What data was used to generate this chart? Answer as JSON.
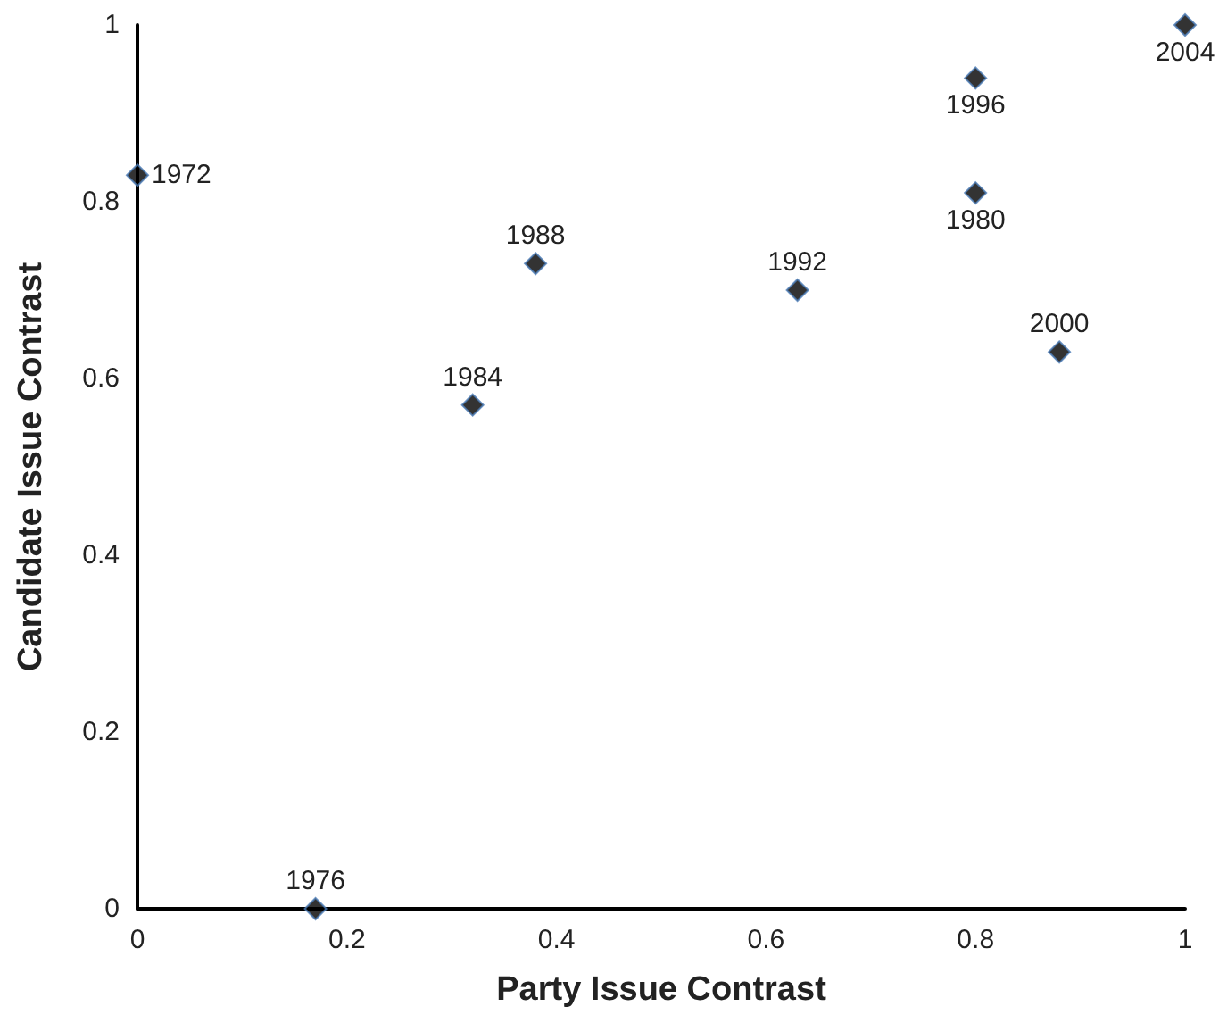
{
  "chart_data": {
    "type": "scatter",
    "xlabel": "Party Issue Contrast",
    "ylabel": "Candidate Issue Contrast",
    "x": [
      0,
      0.17,
      0.8,
      0.32,
      0.38,
      0.63,
      0.8,
      0.88,
      1
    ],
    "values": [
      0.83,
      0,
      0.81,
      0.57,
      0.73,
      0.7,
      0.94,
      0.63,
      1
    ],
    "color": "#000000",
    "marker": "diamond",
    "grid": false,
    "xlim": [
      0,
      1
    ],
    "xticks": [
      0,
      0.2,
      0.4,
      0.6,
      0.8,
      1
    ],
    "ylim": [
      0,
      1
    ],
    "yticks": [
      0,
      0.2,
      0.4,
      0.6,
      0.8,
      1
    ],
    "annotations": [
      {
        "text": "1972",
        "x": 0,
        "y": 0.83
      },
      {
        "text": "1976",
        "x": 0.17,
        "y": 0
      },
      {
        "text": "1980",
        "x": 0.8,
        "y": 0.81
      },
      {
        "text": "1984",
        "x": 0.32,
        "y": 0.57
      },
      {
        "text": "1988",
        "x": 0.38,
        "y": 0.73
      },
      {
        "text": "1992",
        "x": 0.63,
        "y": 0.7
      },
      {
        "text": "1996",
        "x": 0.8,
        "y": 0.94
      },
      {
        "text": "2000",
        "x": 0.88,
        "y": 0.63
      },
      {
        "text": "2004",
        "x": 1,
        "y": 1
      }
    ]
  }
}
